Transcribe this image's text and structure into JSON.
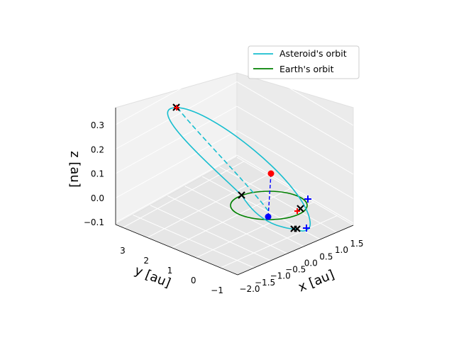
{
  "chart_data": {
    "type": "line",
    "projection": "3d",
    "xlabel": "x [au]",
    "ylabel": "y [au]",
    "zlabel": "z [au]",
    "xlim": [
      -2.1,
      1.8
    ],
    "ylim": [
      -1.2,
      3.5
    ],
    "zlim": [
      -0.13,
      0.36
    ],
    "x_ticks": [
      "−2.0",
      "−1.5",
      "−1.0",
      "−0.5",
      "0.0",
      "0.5",
      "1.0",
      "1.5"
    ],
    "y_ticks": [
      "−1",
      "0",
      "1",
      "2",
      "3"
    ],
    "z_ticks": [
      "−0.1",
      "0.0",
      "0.1",
      "0.2",
      "0.3"
    ],
    "grid": true,
    "legend_position": "top-right",
    "series": [
      {
        "name": "Asteroid's orbit",
        "color": "#17becf",
        "style": "solid, dashed below ecliptic"
      },
      {
        "name": "Earth's orbit",
        "color": "#008000",
        "style": "solid"
      }
    ],
    "markers": [
      {
        "kind": "red-dot",
        "label": "asteroid position",
        "color": "#ff0000"
      },
      {
        "kind": "blue-dot",
        "label": "projection on ecliptic",
        "color": "#0000ff"
      },
      {
        "kind": "black-x",
        "label": "orbit nodes / apsides",
        "color": "#000000"
      },
      {
        "kind": "blue-plus",
        "color": "#0000ff"
      },
      {
        "kind": "red-plus",
        "color": "#ff0000"
      }
    ]
  }
}
